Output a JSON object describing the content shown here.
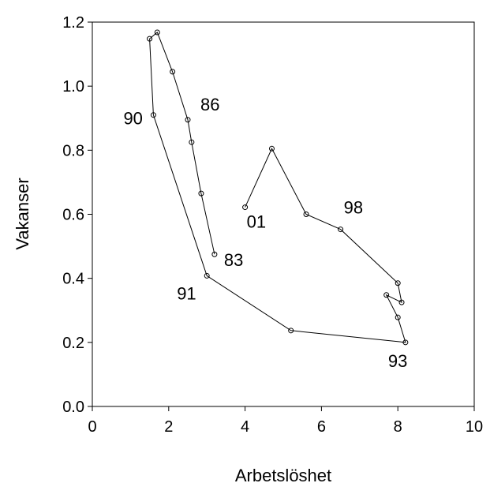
{
  "chart_data": {
    "type": "line",
    "xlabel": "Arbetslöshet",
    "ylabel": "Vakanser",
    "xlim": [
      0,
      10
    ],
    "ylim": [
      0,
      1.2
    ],
    "x_ticks": [
      "0",
      "2",
      "4",
      "6",
      "8",
      "10"
    ],
    "y_ticks": [
      "0.0",
      "0.2",
      "0.4",
      "0.6",
      "0.8",
      "1.0",
      "1.2"
    ],
    "grid": false,
    "series": [
      {
        "x": [
          3.2,
          2.85,
          2.6,
          2.5,
          2.1,
          1.7,
          1.5,
          1.6,
          3.0,
          5.2,
          8.2,
          8.0,
          7.7,
          8.1,
          8.0,
          6.5,
          5.6,
          4.7,
          4.0
        ],
        "y": [
          0.475,
          0.665,
          0.825,
          0.895,
          1.045,
          1.168,
          1.148,
          0.91,
          0.408,
          0.237,
          0.2,
          0.278,
          0.348,
          0.325,
          0.385,
          0.553,
          0.6,
          0.805,
          0.622
        ]
      }
    ],
    "annotations": [
      {
        "text": "83",
        "x": 3.2,
        "y": 0.475
      },
      {
        "text": "86",
        "x": 2.5,
        "y": 0.895
      },
      {
        "text": "90",
        "x": 1.6,
        "y": 0.91
      },
      {
        "text": "91",
        "x": 3.0,
        "y": 0.408
      },
      {
        "text": "93",
        "x": 8.2,
        "y": 0.2
      },
      {
        "text": "98",
        "x": 6.5,
        "y": 0.553
      },
      {
        "text": "01",
        "x": 4.0,
        "y": 0.622
      }
    ]
  }
}
